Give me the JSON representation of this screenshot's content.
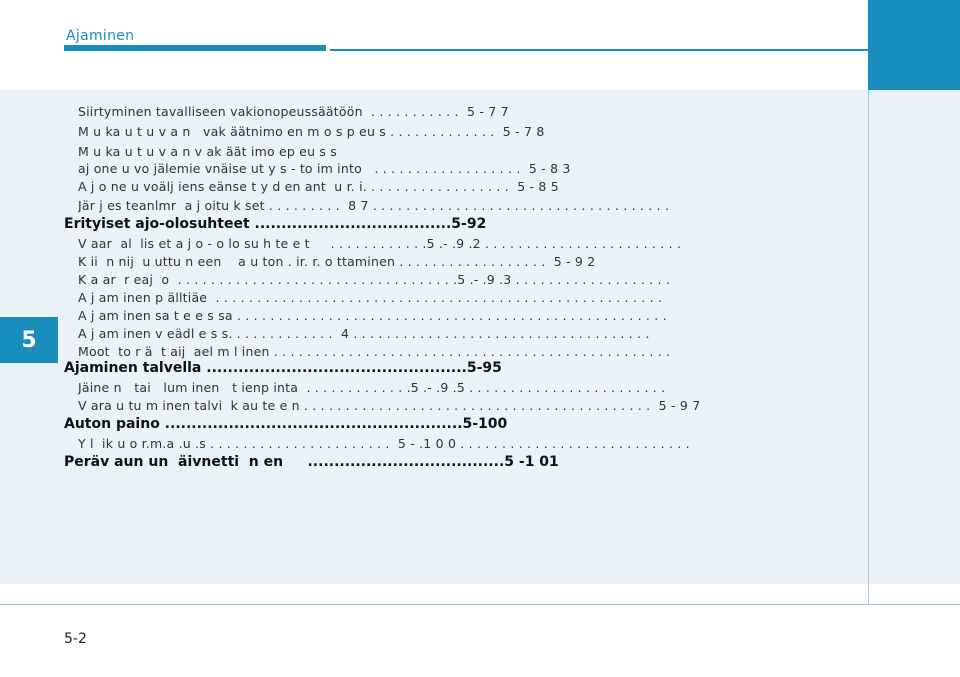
{
  "header": {
    "section_title": "Ajaminen"
  },
  "chapter_tab": "5",
  "page_number": "5-2",
  "toc": [
    {
      "level": 2,
      "text": "Siirtyminen tavalliseen vakionopeussäätöön  . . . . . . . . . . .  5 - 7 7"
    },
    {
      "level": 2,
      "text": "M u ka u t u v a n   vak äätnimo en m o s p eu s . . . . . . . . . . . . .  5 - 7 8"
    },
    {
      "level": 2,
      "text": "M u ka u t u v a n v ak äät imo ep eu s s"
    },
    {
      "level": 2,
      "text": "aj one u vo jälemie vnäise ut y s - to im into   . . . . . . . . . . . . . . . . . .  5 - 8 3"
    },
    {
      "level": 2,
      "text": "A j o ne u voälj iens eänse t y d en ant  u r. i. . . . . . . . . . . . . . . . . .  5 - 8 5"
    },
    {
      "level": 2,
      "text": "Jär j es teanlmr  a j oitu k set . . . . . . . . .  8 7 . . . . . . . . . . . . . . . . . . . . . . . . . . . . . . . . . . . ."
    },
    {
      "level": 1,
      "text": "Erityiset ajo-olosuhteet .....................................5-92"
    },
    {
      "level": 2,
      "text": "V aar  al  lis et a j o - o lo su h te e t     . . . . . . . . . . . .5 .- .9 .2 . . . . . . . . . . . . . . . . . . . . . . . ."
    },
    {
      "level": 2,
      "text": "K ii  n nij  u uttu n een    a u ton . ir. r. o ttaminen . . . . . . . . . . . . . . . . . .  5 - 9 2"
    },
    {
      "level": 2,
      "text": "K a ar  r eaj  o  . . . . . . . . . . . . . . . . . . . . . . . . . . . . . . . . . .5 .- .9 .3 . . . . . . . . . . . . . . . . . . ."
    },
    {
      "level": 2,
      "text": "A j am inen p älltiäe  . . . . . . . . . . . . . . . . . . . . . . . . . . . . . . . . . . . . . . . . . . . . . . . . . . . . . ."
    },
    {
      "level": 2,
      "text": "A j am inen sa t e e s sa . . . . . . . . . . . . . . . . . . . . . . . . . . . . . . . . . . . . . . . . . . . . . . . . . . . ."
    },
    {
      "level": 2,
      "text": "A j am inen v eädl e s s. . . . . . . . . . . . .  4 . . . . . . . . . . . . . . . . . . . . . . . . . . . . . . . . . . . ."
    },
    {
      "level": 2,
      "text": "Moot  to r ä  t aij  ael m l inen . . . . . . . . . . . . . . . . . . . . . . . . . . . . . . . . . . . . . . . . . . . . . . . ."
    },
    {
      "level": 1,
      "text": "Ajaminen talvella .................................................5-95"
    },
    {
      "level": 2,
      "text": "Jäine n   tai   lum inen   t ienp inta  . . . . . . . . . . . . .5 .- .9 .5 . . . . . . . . . . . . . . . . . . . . . . . ."
    },
    {
      "level": 2,
      "text": "V ara u tu m inen talvi  k au te e n . . . . . . . . . . . . . . . . . . . . . . . . . . . . . . . . . . . . . . . . . .  5 - 9 7"
    },
    {
      "level": 1,
      "text": "Auton paino ........................................................5-100"
    },
    {
      "level": 2,
      "text": "Y l  ik u o r.m.a .u .s . . . . . . . . . . . . . . . . . . . . . .  5 - .1 0 0 . . . . . . . . . . . . . . . . . . . . . . . . . . . ."
    },
    {
      "level": 1,
      "text": "Peräv aun un  äivnetti  n en     .....................................5 -1 01"
    }
  ]
}
